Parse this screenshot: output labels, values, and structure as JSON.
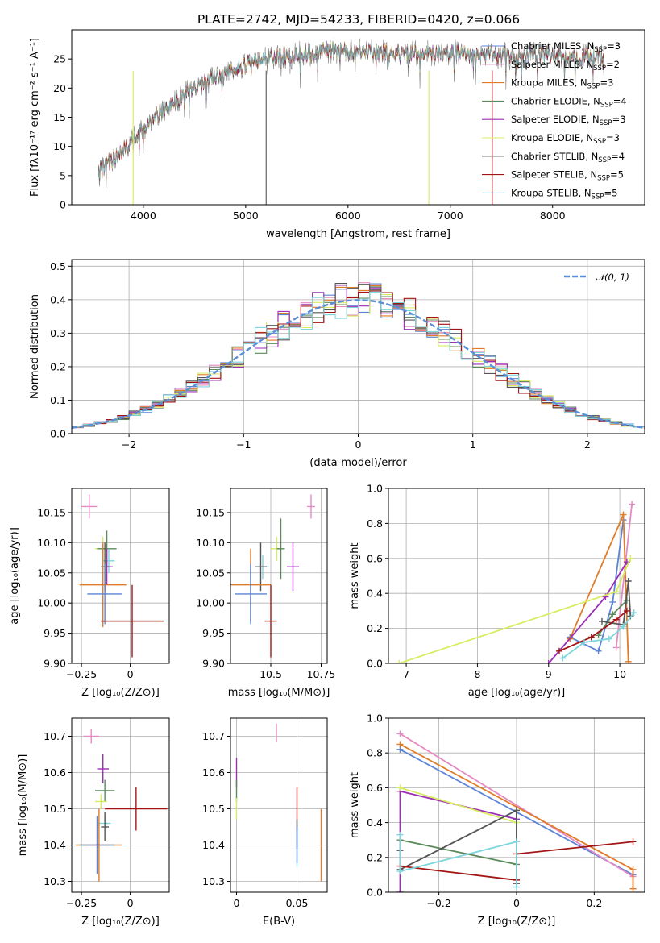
{
  "figure": {
    "title": "PLATE=2742, MJD=54233, FIBERID=0420, z=0.066"
  },
  "colors": {
    "chabrier_miles": "#5b84d6",
    "salpeter_miles": "#e58ac2",
    "kroupa_miles": "#e07b28",
    "chabrier_elodie": "#5c8a5c",
    "salpeter_elodie": "#9b2fb5",
    "kroupa_elodie": "#d8ec62",
    "chabrier_stelib": "#555555",
    "salpeter_stelib": "#a31515",
    "kroupa_stelib": "#7dd6dc",
    "normal": "#5b8fd6",
    "spectrum_grey": "#777777"
  },
  "legend_models": [
    {
      "key": "chabrier_miles",
      "prefix": "Chabrier MILES, N",
      "sub": "SSP",
      "suffix": "=3"
    },
    {
      "key": "salpeter_miles",
      "prefix": "Salpeter MILES, N",
      "sub": "SSP",
      "suffix": "=2"
    },
    {
      "key": "kroupa_miles",
      "prefix": "Kroupa MILES, N",
      "sub": "SSP",
      "suffix": "=3"
    },
    {
      "key": "chabrier_elodie",
      "prefix": "Chabrier ELODIE, N",
      "sub": "SSP",
      "suffix": "=4"
    },
    {
      "key": "salpeter_elodie",
      "prefix": "Salpeter ELODIE, N",
      "sub": "SSP",
      "suffix": "=3"
    },
    {
      "key": "kroupa_elodie",
      "prefix": "Kroupa ELODIE, N",
      "sub": "SSP",
      "suffix": "=3"
    },
    {
      "key": "chabrier_stelib",
      "prefix": "Chabrier STELIB, N",
      "sub": "SSP",
      "suffix": "=4"
    },
    {
      "key": "salpeter_stelib",
      "prefix": "Salpeter STELIB, N",
      "sub": "SSP",
      "suffix": "=5"
    },
    {
      "key": "kroupa_stelib",
      "prefix": "Kroupa STELIB, N",
      "sub": "SSP",
      "suffix": "=5"
    }
  ],
  "chart_data": [
    {
      "id": "spectrum",
      "type": "line",
      "xlabel": "wavelength [Angstrom, rest frame]",
      "ylabel": "Flux [fλ10⁻¹⁷ erg cm⁻² s⁻¹ A⁻¹]",
      "xlim": [
        3300,
        8900
      ],
      "ylim": [
        0,
        30
      ],
      "xticks": [
        4000,
        5000,
        6000,
        7000,
        8000
      ],
      "yticks": [
        0,
        5,
        10,
        15,
        20,
        25
      ],
      "grid": false,
      "legend": "right",
      "continuum": {
        "x": [
          3560,
          3650,
          3750,
          3850,
          3950,
          4050,
          4150,
          4300,
          4450,
          4600,
          4800,
          5000,
          5200,
          5400,
          5600,
          5800,
          6000,
          6200,
          6400,
          6600,
          6800,
          7000,
          7200,
          7400,
          7600,
          7800,
          8000,
          8200,
          8400,
          8500
        ],
        "y": [
          6,
          7,
          8.5,
          10,
          12,
          14,
          15.5,
          17.5,
          19.5,
          21,
          22.5,
          24,
          25,
          25.5,
          26,
          26.5,
          26.5,
          26.2,
          26.2,
          26,
          26,
          26,
          25.8,
          26,
          26,
          25.8,
          25.6,
          25.3,
          25.3,
          25.3
        ]
      }
    },
    {
      "id": "residuals",
      "type": "histogram",
      "xlabel": "(data-model)/error",
      "ylabel": "Normed distribution",
      "xlim": [
        -2.5,
        2.5
      ],
      "ylim": [
        0,
        0.52
      ],
      "xticks": [
        -2,
        -1,
        0,
        1,
        2
      ],
      "yticks": [
        0.0,
        0.1,
        0.2,
        0.3,
        0.4,
        0.5
      ],
      "grid": true,
      "legend": "top-right",
      "legend_label": "𝒩(0, 1)",
      "bin_width": 0.1
    },
    {
      "id": "z_age",
      "type": "errorbar",
      "xlabel": "Z [log₁₀(Z/Z⊙)]",
      "ylabel": "age  [log₁₀(age/yr)]",
      "xlim": [
        -0.3,
        0.2
      ],
      "ylim": [
        9.9,
        10.19
      ],
      "xticks": [
        -0.25,
        0.0
      ],
      "yticks": [
        9.9,
        9.95,
        10.0,
        10.05,
        10.1,
        10.15
      ],
      "points": [
        {
          "key": "salpeter_miles",
          "x": -0.21,
          "xerr": 0.04,
          "y": 10.16,
          "yerr": 0.02
        },
        {
          "key": "kroupa_elodie",
          "x": -0.14,
          "xerr": 0.04,
          "y": 10.09,
          "yerr": 0.02
        },
        {
          "key": "chabrier_elodie",
          "x": -0.12,
          "xerr": 0.05,
          "y": 10.09,
          "yerr": 0.03
        },
        {
          "key": "kroupa_stelib",
          "x": -0.11,
          "xerr": 0.03,
          "y": 10.07,
          "yerr": 0.02
        },
        {
          "key": "salpeter_elodie",
          "x": -0.12,
          "xerr": 0.03,
          "y": 10.06,
          "yerr": 0.03
        },
        {
          "key": "chabrier_stelib",
          "x": -0.13,
          "xerr": 0.02,
          "y": 10.06,
          "yerr": 0.04
        },
        {
          "key": "kroupa_miles",
          "x": -0.14,
          "xerr": 0.12,
          "y": 10.03,
          "yerr": 0.07
        },
        {
          "key": "chabrier_miles",
          "x": -0.13,
          "xerr": 0.09,
          "y": 10.015,
          "yerr": 0.05
        },
        {
          "key": "salpeter_stelib",
          "x": 0.01,
          "xerr": 0.16,
          "y": 9.97,
          "yerr": 0.06
        }
      ]
    },
    {
      "id": "mass_age",
      "type": "errorbar",
      "xlabel": "mass [log₁₀(M/M⊙)]",
      "ylabel": "",
      "xlim": [
        10.3,
        10.78
      ],
      "ylim": [
        9.9,
        10.19
      ],
      "xticks": [
        10.5,
        10.75
      ],
      "yticks": [
        9.9,
        9.95,
        10.0,
        10.05,
        10.1,
        10.15
      ],
      "points": [
        {
          "key": "salpeter_miles",
          "x": 10.7,
          "xerr": 0.02,
          "y": 10.16,
          "yerr": 0.02
        },
        {
          "key": "kroupa_elodie",
          "x": 10.53,
          "xerr": 0.03,
          "y": 10.09,
          "yerr": 0.02
        },
        {
          "key": "chabrier_elodie",
          "x": 10.55,
          "xerr": 0.02,
          "y": 10.09,
          "yerr": 0.05
        },
        {
          "key": "kroupa_stelib",
          "x": 10.46,
          "xerr": 0.03,
          "y": 10.06,
          "yerr": 0.02
        },
        {
          "key": "salpeter_elodie",
          "x": 10.61,
          "xerr": 0.03,
          "y": 10.06,
          "yerr": 0.04
        },
        {
          "key": "chabrier_stelib",
          "x": 10.45,
          "xerr": 0.03,
          "y": 10.06,
          "yerr": 0.04
        },
        {
          "key": "kroupa_miles",
          "x": 10.4,
          "xerr": 0.1,
          "y": 10.03,
          "yerr": 0.06
        },
        {
          "key": "chabrier_miles",
          "x": 10.4,
          "xerr": 0.08,
          "y": 10.015,
          "yerr": 0.05
        },
        {
          "key": "salpeter_stelib",
          "x": 10.5,
          "xerr": 0.03,
          "y": 9.97,
          "yerr": 0.06
        }
      ]
    },
    {
      "id": "age_weight",
      "type": "line",
      "xlabel": "age  [log₁₀(age/yr)]",
      "ylabel": "mass weight",
      "xlim": [
        6.75,
        10.35
      ],
      "ylim": [
        0,
        1
      ],
      "xticks": [
        7,
        8,
        9,
        10
      ],
      "yticks": [
        0.0,
        0.2,
        0.4,
        0.6,
        0.8,
        1.0
      ],
      "grid": true,
      "series": [
        {
          "key": "chabrier_miles",
          "x": [
            9.3,
            9.7,
            9.9,
            10.05
          ],
          "y": [
            0.15,
            0.07,
            0.35,
            0.82
          ]
        },
        {
          "key": "salpeter_miles",
          "x": [
            9.95,
            10.17
          ],
          "y": [
            0.09,
            0.91
          ]
        },
        {
          "key": "kroupa_miles",
          "x": [
            9.3,
            10.05,
            10.12
          ],
          "y": [
            0.14,
            0.85,
            0.01
          ]
        },
        {
          "key": "chabrier_elodie",
          "x": [
            9.7,
            9.9,
            10.1
          ],
          "y": [
            0.16,
            0.28,
            0.36
          ]
        },
        {
          "key": "salpeter_elodie",
          "x": [
            9.0,
            9.8,
            10.1
          ],
          "y": [
            0.0,
            0.38,
            0.58
          ]
        },
        {
          "key": "kroupa_elodie",
          "x": [
            6.9,
            9.95,
            10.15
          ],
          "y": [
            0.0,
            0.41,
            0.6
          ]
        },
        {
          "key": "chabrier_stelib",
          "x": [
            9.75,
            10.05,
            10.12,
            10.15
          ],
          "y": [
            0.24,
            0.22,
            0.47,
            0.27
          ]
        },
        {
          "key": "salpeter_stelib",
          "x": [
            9.15,
            9.6,
            9.95,
            10.1
          ],
          "y": [
            0.07,
            0.15,
            0.25,
            0.3
          ]
        },
        {
          "key": "kroupa_stelib",
          "x": [
            9.2,
            9.5,
            9.85,
            10.05,
            10.2
          ],
          "y": [
            0.03,
            0.12,
            0.14,
            0.21,
            0.29
          ]
        }
      ]
    },
    {
      "id": "z_mass",
      "type": "errorbar",
      "xlabel": "Z [log₁₀(Z/Z⊙)]",
      "ylabel": "mass [log₁₀(M/M⊙)]",
      "xlim": [
        -0.3,
        0.2
      ],
      "ylim": [
        10.27,
        10.75
      ],
      "xticks": [
        -0.25,
        0.0
      ],
      "yticks": [
        10.3,
        10.4,
        10.5,
        10.6,
        10.7
      ],
      "points": [
        {
          "key": "salpeter_miles",
          "x": -0.2,
          "xerr": 0.04,
          "y": 10.7,
          "yerr": 0.02
        },
        {
          "key": "salpeter_elodie",
          "x": -0.14,
          "xerr": 0.03,
          "y": 10.61,
          "yerr": 0.04
        },
        {
          "key": "chabrier_elodie",
          "x": -0.13,
          "xerr": 0.05,
          "y": 10.55,
          "yerr": 0.03
        },
        {
          "key": "kroupa_elodie",
          "x": -0.15,
          "xerr": 0.03,
          "y": 10.52,
          "yerr": 0.02
        },
        {
          "key": "salpeter_stelib",
          "x": 0.03,
          "xerr": 0.16,
          "y": 10.5,
          "yerr": 0.06
        },
        {
          "key": "kroupa_stelib",
          "x": -0.13,
          "xerr": 0.03,
          "y": 10.46,
          "yerr": 0.02
        },
        {
          "key": "chabrier_stelib",
          "x": -0.13,
          "xerr": 0.02,
          "y": 10.45,
          "yerr": 0.04
        },
        {
          "key": "kroupa_miles",
          "x": -0.16,
          "xerr": 0.12,
          "y": 10.4,
          "yerr": 0.1
        },
        {
          "key": "chabrier_miles",
          "x": -0.17,
          "xerr": 0.09,
          "y": 10.4,
          "yerr": 0.08
        }
      ]
    },
    {
      "id": "ebv_mass",
      "type": "errorbar",
      "xlabel": "E(B-V)",
      "ylabel": "",
      "xlim": [
        -0.005,
        0.075
      ],
      "ylim": [
        10.27,
        10.75
      ],
      "xticks": [
        0.0,
        0.05
      ],
      "yticks": [
        10.3,
        10.4,
        10.5,
        10.6,
        10.7
      ],
      "points": [
        {
          "key": "salpeter_miles",
          "x": 0.033,
          "xerr": 0.0,
          "y": 10.71,
          "yerr": 0.025
        },
        {
          "key": "salpeter_elodie",
          "x": 0.0,
          "xerr": 0.0,
          "y": 10.6,
          "yerr": 0.04
        },
        {
          "key": "chabrier_elodie",
          "x": 0.0,
          "xerr": 0.0,
          "y": 10.55,
          "yerr": 0.03
        },
        {
          "key": "kroupa_elodie",
          "x": 0.0,
          "xerr": 0.0,
          "y": 10.5,
          "yerr": 0.03
        },
        {
          "key": "salpeter_stelib",
          "x": 0.05,
          "xerr": 0.0,
          "y": 10.5,
          "yerr": 0.06
        },
        {
          "key": "kroupa_stelib",
          "x": 0.05,
          "xerr": 0.0,
          "y": 10.4,
          "yerr": 0.06
        },
        {
          "key": "chabrier_stelib",
          "x": 0.05,
          "xerr": 0.0,
          "y": 10.43,
          "yerr": 0.04
        },
        {
          "key": "kroupa_miles",
          "x": 0.07,
          "xerr": 0.0,
          "y": 10.4,
          "yerr": 0.1
        },
        {
          "key": "chabrier_miles",
          "x": 0.05,
          "xerr": 0.0,
          "y": 10.4,
          "yerr": 0.05
        }
      ]
    },
    {
      "id": "z_weight",
      "type": "line",
      "xlabel": "Z [log₁₀(Z/Z⊙)]",
      "ylabel": "mass weight",
      "xlim": [
        -0.33,
        0.33
      ],
      "ylim": [
        0,
        1
      ],
      "xticks": [
        -0.2,
        0.0,
        0.2
      ],
      "yticks": [
        0.0,
        0.2,
        0.4,
        0.6,
        0.8,
        1.0
      ],
      "grid": true,
      "series": [
        {
          "key": "chabrier_miles",
          "x": [
            -0.3,
            0.3
          ],
          "y": [
            0.82,
            0.1
          ]
        },
        {
          "key": "salpeter_miles",
          "x": [
            -0.3,
            0.3
          ],
          "y": [
            0.91,
            0.09
          ]
        },
        {
          "key": "kroupa_miles",
          "x": [
            -0.3,
            0.3,
            0.3
          ],
          "y": [
            0.85,
            0.13,
            0.02
          ]
        },
        {
          "key": "chabrier_elodie",
          "x": [
            -0.3,
            0.0,
            0.0
          ],
          "y": [
            0.3,
            0.16,
            0.47
          ]
        },
        {
          "key": "salpeter_elodie",
          "x": [
            -0.3,
            -0.3,
            0.0
          ],
          "y": [
            0.0,
            0.58,
            0.42
          ]
        },
        {
          "key": "kroupa_elodie",
          "x": [
            -0.3,
            0.0
          ],
          "y": [
            0.6,
            0.4
          ]
        },
        {
          "key": "chabrier_stelib",
          "x": [
            -0.3,
            -0.3,
            0.0,
            0.0
          ],
          "y": [
            0.24,
            0.13,
            0.47,
            0.05
          ]
        },
        {
          "key": "salpeter_stelib",
          "x": [
            -0.3,
            0.0,
            0.0,
            0.3
          ],
          "y": [
            0.15,
            0.07,
            0.22,
            0.29
          ]
        },
        {
          "key": "kroupa_stelib",
          "x": [
            -0.3,
            -0.3,
            0.0,
            0.0
          ],
          "y": [
            0.33,
            0.12,
            0.29,
            0.03
          ]
        }
      ]
    }
  ]
}
